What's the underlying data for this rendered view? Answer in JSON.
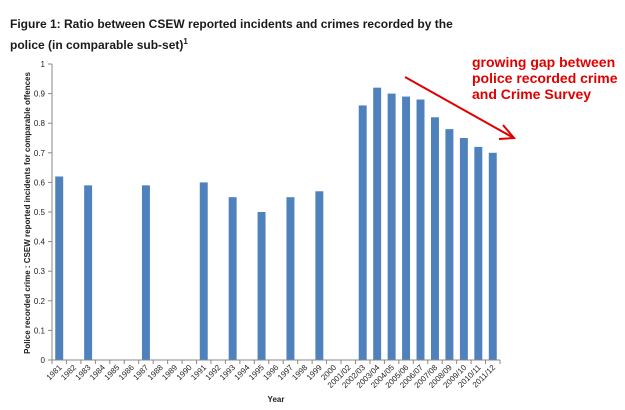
{
  "figure": {
    "title": "Figure 1: Ratio between CSEW reported incidents and crimes recorded by the police (in comparable sub-set)",
    "footnote_mark": "1"
  },
  "annotation": {
    "lines": [
      "growing gap between",
      "police recorded crime",
      "and Crime Survey"
    ],
    "color": "#e00000"
  },
  "chart_data": {
    "type": "bar",
    "xlabel": "Year",
    "ylabel": "Police recorded crime : CSEW reported incidents for comparable offences",
    "ylim": [
      0,
      1
    ],
    "yticks": [
      0,
      0.1,
      0.2,
      0.3,
      0.4,
      0.5,
      0.6,
      0.7,
      0.8,
      0.9,
      1
    ],
    "grid": false,
    "bar_color": "#4f81bd",
    "categories": [
      "1981",
      "1982",
      "1983",
      "1984",
      "1985",
      "1986",
      "1987",
      "1988",
      "1989",
      "1990",
      "1991",
      "1992",
      "1993",
      "1994",
      "1995",
      "1996",
      "1997",
      "1998",
      "1999",
      "2000",
      "2001/02",
      "2002/03",
      "2003/04",
      "2004/05",
      "2005/06",
      "2006/07",
      "2007/08",
      "2008/09",
      "2009/10",
      "2010/11",
      "2011/12"
    ],
    "values": [
      0.62,
      null,
      0.59,
      null,
      null,
      null,
      0.59,
      null,
      null,
      null,
      0.6,
      null,
      0.55,
      null,
      0.5,
      null,
      0.55,
      null,
      0.57,
      null,
      null,
      0.86,
      0.92,
      0.9,
      0.89,
      0.88,
      0.82,
      0.78,
      0.75,
      0.72,
      0.7
    ]
  }
}
